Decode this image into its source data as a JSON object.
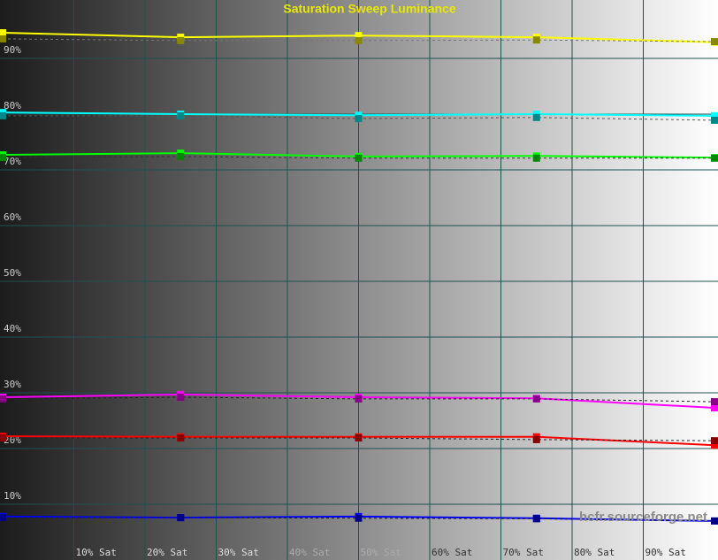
{
  "chart_data": {
    "type": "line",
    "title": "Saturation Sweep Luminance",
    "watermark": "hcfr.sourceforge.net",
    "x": [
      0,
      25,
      50,
      75,
      100
    ],
    "xlim": [
      0,
      100
    ],
    "ylim": [
      0,
      100
    ],
    "xticks": [
      {
        "value": 10,
        "label": "10% Sat"
      },
      {
        "value": 20,
        "label": "20% Sat"
      },
      {
        "value": 30,
        "label": "30% Sat"
      },
      {
        "value": 40,
        "label": "40% Sat"
      },
      {
        "value": 50,
        "label": "50% Sat"
      },
      {
        "value": 60,
        "label": "60% Sat"
      },
      {
        "value": 70,
        "label": "70% Sat"
      },
      {
        "value": 80,
        "label": "80% Sat"
      },
      {
        "value": 90,
        "label": "90% Sat"
      }
    ],
    "yticks": [
      {
        "value": 10,
        "label": "10%"
      },
      {
        "value": 20,
        "label": "20%"
      },
      {
        "value": 30,
        "label": "30%"
      },
      {
        "value": 40,
        "label": "40%"
      },
      {
        "value": 50,
        "label": "50%"
      },
      {
        "value": 60,
        "label": "60%"
      },
      {
        "value": 70,
        "label": "70%"
      },
      {
        "value": 80,
        "label": "80%"
      },
      {
        "value": 90,
        "label": "90%"
      }
    ],
    "grid": true,
    "grid_color": "#1e5050",
    "series": [
      {
        "color": "#ffff00",
        "values": [
          94.6,
          93.8,
          94.1,
          93.8,
          92.9
        ]
      },
      {
        "color": "#888800",
        "line_color": "#777777",
        "dash": true,
        "values": [
          93.5,
          93.2,
          93.2,
          93.3,
          93.0
        ]
      },
      {
        "color": "#00ffff",
        "values": [
          80.3,
          80.0,
          79.8,
          80.0,
          79.7
        ]
      },
      {
        "color": "#008888",
        "line_color": "#555555",
        "dash": true,
        "values": [
          79.7,
          79.7,
          79.2,
          79.4,
          78.9
        ]
      },
      {
        "color": "#00ff00",
        "values": [
          72.7,
          73.0,
          72.4,
          72.5,
          72.2
        ]
      },
      {
        "color": "#008800",
        "line_color": "#333333",
        "dash": true,
        "values": [
          72.2,
          72.4,
          72.1,
          72.1,
          72.1
        ]
      },
      {
        "color": "#ff00ff",
        "values": [
          29.2,
          29.7,
          29.2,
          29.0,
          27.3
        ]
      },
      {
        "color": "#880088",
        "line_color": "#222222",
        "dash": true,
        "values": [
          28.9,
          29.2,
          28.9,
          28.9,
          28.4
        ]
      },
      {
        "color": "#ff0000",
        "values": [
          22.2,
          22.1,
          22.1,
          22.1,
          20.6
        ]
      },
      {
        "color": "#880000",
        "line_color": "#222222",
        "dash": true,
        "values": [
          21.9,
          21.9,
          21.9,
          21.6,
          21.4
        ]
      },
      {
        "color": "#0000ff",
        "values": [
          7.8,
          7.6,
          7.8,
          7.5,
          7.0
        ]
      },
      {
        "color": "#000088",
        "line_color": "#222222",
        "dash": true,
        "values": [
          7.6,
          7.6,
          7.5,
          7.4,
          7.0
        ]
      }
    ]
  }
}
